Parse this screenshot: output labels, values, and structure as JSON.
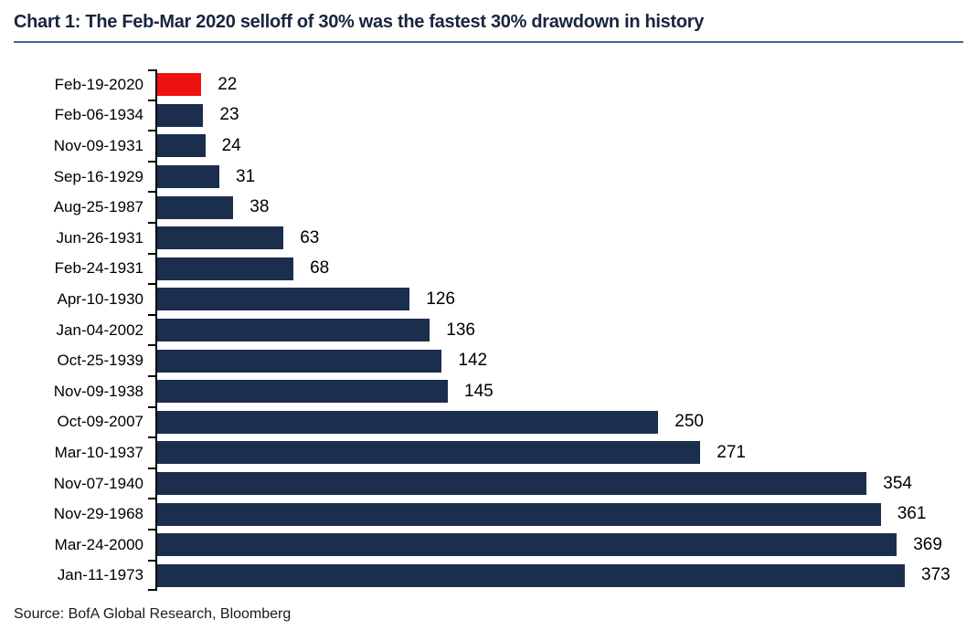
{
  "title": "Chart 1: The Feb-Mar 2020 selloff of 30% was the fastest 30% drawdown in history",
  "source": "Source: BofA Global Research, Bloomberg",
  "colors": {
    "bar": "#1B2E4E",
    "highlight_bar": "#F01111",
    "title_text": "#17263E",
    "title_underline": "#3E6491",
    "axis": "#000000",
    "label_text": "#000000"
  },
  "chart_data": {
    "type": "bar",
    "orientation": "horizontal",
    "title": "Chart 1: The Feb-Mar 2020 selloff of 30% was the fastest 30% drawdown in history",
    "xlabel": "",
    "ylabel": "",
    "categories": [
      "Feb-19-2020",
      "Feb-06-1934",
      "Nov-09-1931",
      "Sep-16-1929",
      "Aug-25-1987",
      "Jun-26-1931",
      "Feb-24-1931",
      "Apr-10-1930",
      "Jan-04-2002",
      "Oct-25-1939",
      "Nov-09-1938",
      "Oct-09-2007",
      "Mar-10-1937",
      "Nov-07-1940",
      "Nov-29-1968",
      "Mar-24-2000",
      "Jan-11-1973"
    ],
    "values": [
      22,
      23,
      24,
      31,
      38,
      63,
      68,
      126,
      136,
      142,
      145,
      250,
      271,
      354,
      361,
      369,
      373
    ],
    "highlight_category": "Feb-19-2020",
    "value_labels": true,
    "grid": false,
    "legend": false,
    "xlim": [
      0,
      373
    ],
    "axis_tick_style": "category-boundary ticks on left axis"
  }
}
